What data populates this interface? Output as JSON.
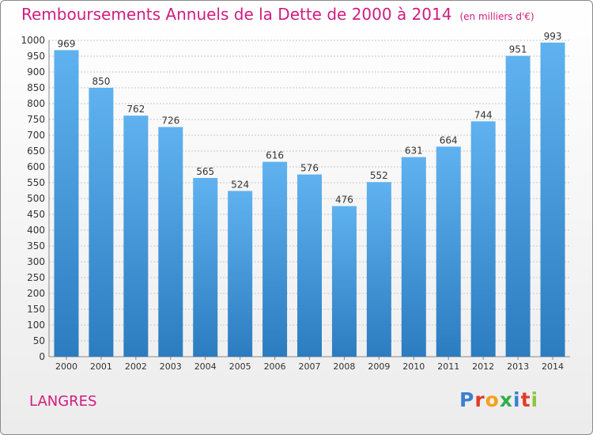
{
  "title": {
    "main": "Remboursements Annuels de la Dette de 2000 à 2014",
    "unit": "(en milliers d'€)"
  },
  "city": "LANGRES",
  "logo": {
    "letters": [
      "P",
      "r",
      "o",
      "x",
      "i",
      "t",
      "i"
    ],
    "colors": [
      "#3d7fd1",
      "#e23c2a",
      "#f3a21b",
      "#2fae4a",
      "#3d7fd1",
      "#e23c2a",
      "#8dc63f"
    ]
  },
  "chart_data": {
    "type": "bar",
    "title": "Remboursements Annuels de la Dette de 2000 à 2014",
    "xlabel": "",
    "ylabel": "en milliers d'€",
    "categories": [
      "2000",
      "2001",
      "2002",
      "2003",
      "2004",
      "2005",
      "2006",
      "2007",
      "2008",
      "2009",
      "2010",
      "2011",
      "2012",
      "2013",
      "2014"
    ],
    "values": [
      969,
      850,
      762,
      726,
      565,
      524,
      616,
      576,
      476,
      552,
      631,
      664,
      744,
      951,
      993
    ],
    "ylim": [
      0,
      1000
    ],
    "ytick_step": 50,
    "grid": true,
    "colors": {
      "bar_top": "#5fb2ef",
      "bar_bottom": "#2c7cc0",
      "grid": "#c8c8c8",
      "axis": "#888888",
      "text": "#333333"
    }
  }
}
